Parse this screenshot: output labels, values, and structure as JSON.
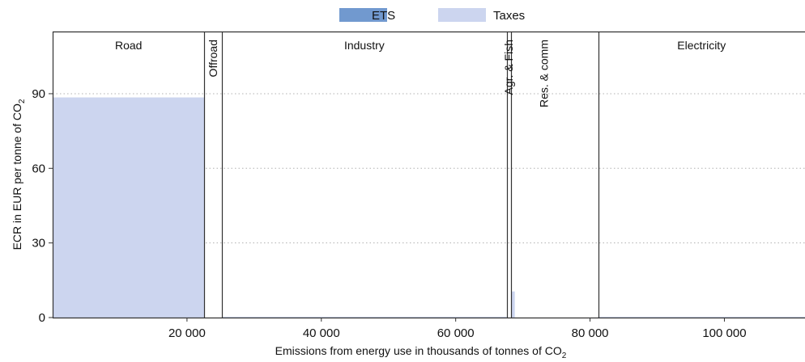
{
  "chart_data": {
    "type": "bar",
    "variant": "variable-width stacked bars (effective carbon rates by sector)",
    "xlabel": "Emissions from energy use in thousands of tonnes of CO",
    "xlabel_sub": "2",
    "ylabel": "ECR in EUR per tonne of CO",
    "ylabel_sub": "2",
    "xlim": [
      0,
      112000
    ],
    "ylim": [
      0,
      115
    ],
    "xticks": [
      20000,
      40000,
      60000,
      80000,
      100000
    ],
    "xtick_labels": [
      "20 000",
      "40 000",
      "60 000",
      "80 000",
      "100 000"
    ],
    "yticks": [
      0,
      30,
      60,
      90
    ],
    "ytick_labels": [
      "0",
      "30",
      "60",
      "90"
    ],
    "grid": "horizontal dotted at y ticks",
    "legend_placement": "top-center",
    "series": [
      {
        "name": "ETS",
        "color": "#7199cf"
      },
      {
        "name": "Taxes",
        "color": "#ccd5ef"
      }
    ],
    "sector_boundaries": [
      22600,
      25200,
      67600,
      68200,
      81200
    ],
    "sectors": [
      {
        "name": "Road",
        "x_start": 0,
        "x_end": 22600,
        "label_orientation": "horizontal"
      },
      {
        "name": "Offroad",
        "x_start": 22600,
        "x_end": 25200,
        "label_orientation": "vertical"
      },
      {
        "name": "Industry",
        "x_start": 25200,
        "x_end": 67600,
        "label_orientation": "horizontal"
      },
      {
        "name": "Agr. & Fish",
        "x_start": 67600,
        "x_end": 68200,
        "label_orientation": "vertical"
      },
      {
        "name": "Res. & comm",
        "x_start": 68200,
        "x_end": 81200,
        "label_orientation": "vertical"
      },
      {
        "name": "Electricity",
        "x_start": 81200,
        "x_end": 112000,
        "label_orientation": "horizontal"
      }
    ],
    "bars": [
      {
        "series": "Taxes",
        "x_start": 0,
        "x_end": 22600,
        "value": 88.5
      },
      {
        "series": "Taxes",
        "x_start": 68300,
        "x_end": 68800,
        "value": 10.5
      },
      {
        "series": "Taxes",
        "x_start": 25200,
        "x_end": 67600,
        "value": 0.3
      },
      {
        "series": "Taxes",
        "x_start": 81200,
        "x_end": 112000,
        "value": 0.3
      }
    ]
  }
}
